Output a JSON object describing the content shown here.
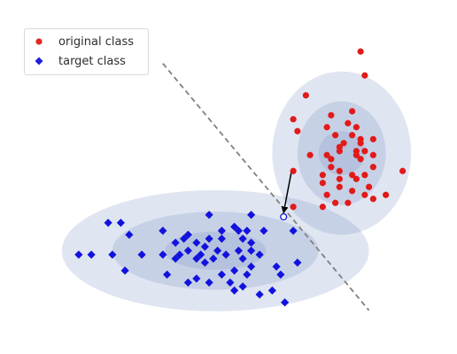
{
  "chart_data": {
    "type": "scatter",
    "title": "",
    "xlabel": "",
    "ylabel": "",
    "xlim": [
      0,
      10
    ],
    "ylim": [
      0,
      8
    ],
    "grid": false,
    "axes_visible": false,
    "legend_placement": "top-left",
    "series": [
      {
        "name": "original class",
        "marker": "circle",
        "color": "#e11a1a",
        "points": [
          [
            8.15,
            7.15
          ],
          [
            8.25,
            6.55
          ],
          [
            6.85,
            6.05
          ],
          [
            6.55,
            5.45
          ],
          [
            6.65,
            5.15
          ],
          [
            7.45,
            5.55
          ],
          [
            7.95,
            5.65
          ],
          [
            7.35,
            5.25
          ],
          [
            7.85,
            5.35
          ],
          [
            8.05,
            5.25
          ],
          [
            7.55,
            5.05
          ],
          [
            7.95,
            5.05
          ],
          [
            8.15,
            4.95
          ],
          [
            8.45,
            4.95
          ],
          [
            7.75,
            4.85
          ],
          [
            7.65,
            4.75
          ],
          [
            8.15,
            4.85
          ],
          [
            7.65,
            4.65
          ],
          [
            8.05,
            4.65
          ],
          [
            8.25,
            4.65
          ],
          [
            7.35,
            4.55
          ],
          [
            8.05,
            4.55
          ],
          [
            8.45,
            4.55
          ],
          [
            6.95,
            4.55
          ],
          [
            7.45,
            4.45
          ],
          [
            8.15,
            4.45
          ],
          [
            7.45,
            4.25
          ],
          [
            7.65,
            4.15
          ],
          [
            7.95,
            4.05
          ],
          [
            8.25,
            4.05
          ],
          [
            7.25,
            4.05
          ],
          [
            7.65,
            3.95
          ],
          [
            8.45,
            4.25
          ],
          [
            8.05,
            3.95
          ],
          [
            6.55,
            4.15
          ],
          [
            7.25,
            3.85
          ],
          [
            7.65,
            3.75
          ],
          [
            8.35,
            3.75
          ],
          [
            7.95,
            3.65
          ],
          [
            8.25,
            3.55
          ],
          [
            7.35,
            3.55
          ],
          [
            7.85,
            3.35
          ],
          [
            7.55,
            3.35
          ],
          [
            8.45,
            3.45
          ],
          [
            8.75,
            3.55
          ],
          [
            6.55,
            3.25
          ],
          [
            9.15,
            4.15
          ],
          [
            7.25,
            3.25
          ]
        ]
      },
      {
        "name": "target class",
        "marker": "diamond",
        "color": "#1212dd",
        "points": [
          [
            4.55,
            3.05
          ],
          [
            5.55,
            3.05
          ],
          [
            2.15,
            2.85
          ],
          [
            2.45,
            2.85
          ],
          [
            6.55,
            2.65
          ],
          [
            2.65,
            2.55
          ],
          [
            4.85,
            2.65
          ],
          [
            5.15,
            2.75
          ],
          [
            5.25,
            2.65
          ],
          [
            5.45,
            2.65
          ],
          [
            5.85,
            2.65
          ],
          [
            4.05,
            2.55
          ],
          [
            3.45,
            2.65
          ],
          [
            3.95,
            2.45
          ],
          [
            4.55,
            2.45
          ],
          [
            4.85,
            2.45
          ],
          [
            5.35,
            2.45
          ],
          [
            5.55,
            2.35
          ],
          [
            4.25,
            2.35
          ],
          [
            3.75,
            2.35
          ],
          [
            4.45,
            2.25
          ],
          [
            4.75,
            2.15
          ],
          [
            5.25,
            2.15
          ],
          [
            5.55,
            2.15
          ],
          [
            4.05,
            2.15
          ],
          [
            3.85,
            2.05
          ],
          [
            4.35,
            2.05
          ],
          [
            4.65,
            1.95
          ],
          [
            4.95,
            2.05
          ],
          [
            5.35,
            1.95
          ],
          [
            5.75,
            2.05
          ],
          [
            3.45,
            2.05
          ],
          [
            2.95,
            2.05
          ],
          [
            1.75,
            2.05
          ],
          [
            1.45,
            2.05
          ],
          [
            2.25,
            2.05
          ],
          [
            3.75,
            1.95
          ],
          [
            4.25,
            1.95
          ],
          [
            4.45,
            1.85
          ],
          [
            5.55,
            1.75
          ],
          [
            6.15,
            1.75
          ],
          [
            6.65,
            1.85
          ],
          [
            2.55,
            1.65
          ],
          [
            3.55,
            1.55
          ],
          [
            4.85,
            1.55
          ],
          [
            5.15,
            1.65
          ],
          [
            5.45,
            1.55
          ],
          [
            6.25,
            1.55
          ],
          [
            4.25,
            1.45
          ],
          [
            4.05,
            1.35
          ],
          [
            4.55,
            1.35
          ],
          [
            5.05,
            1.35
          ],
          [
            5.35,
            1.25
          ],
          [
            5.15,
            1.15
          ],
          [
            5.75,
            1.05
          ],
          [
            6.35,
            0.85
          ],
          [
            6.05,
            1.15
          ]
        ]
      }
    ],
    "ellipses": [
      {
        "class": "original class",
        "center": [
          7.7,
          4.6
        ],
        "radius": [
          0.55,
          0.55
        ],
        "fill": "#7f96c6",
        "opacity": 0.25
      },
      {
        "class": "original class",
        "center": [
          7.7,
          4.6
        ],
        "radius": [
          1.05,
          1.3
        ],
        "fill": "#7f96c6",
        "opacity": 0.25
      },
      {
        "class": "original class",
        "center": [
          7.7,
          4.6
        ],
        "radius": [
          1.65,
          2.05
        ],
        "fill": "#7f96c6",
        "opacity": 0.25
      },
      {
        "class": "target class",
        "center": [
          4.7,
          2.15
        ],
        "radius": [
          1.2,
          0.48
        ],
        "fill": "#7f96c6",
        "opacity": 0.25
      },
      {
        "class": "target class",
        "center": [
          4.7,
          2.15
        ],
        "radius": [
          2.45,
          0.98
        ],
        "fill": "#7f96c6",
        "opacity": 0.25
      },
      {
        "class": "target class",
        "center": [
          4.7,
          2.15
        ],
        "radius": [
          3.65,
          1.52
        ],
        "fill": "#7f96c6",
        "opacity": 0.25
      }
    ],
    "decision_boundary": {
      "from": [
        3.45,
        6.85
      ],
      "to": [
        8.35,
        0.65
      ],
      "style": "dashed",
      "color": "#808080"
    },
    "adversarial_arrow": {
      "from": [
        6.5,
        4.1
      ],
      "to": [
        6.32,
        3.1
      ],
      "color": "#000000"
    },
    "adversarial_point": {
      "at": [
        6.32,
        3.0
      ],
      "marker": "circle-open",
      "color": "#1212dd"
    }
  }
}
